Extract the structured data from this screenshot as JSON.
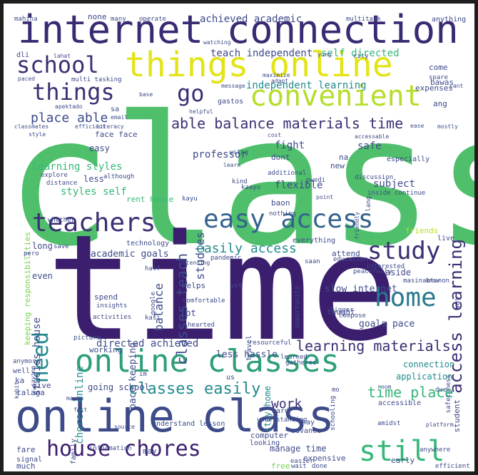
{
  "palette": {
    "purple": "#3b1f6e",
    "indigo": "#3f4a8a",
    "blue": "#33638d",
    "teal": "#238a8d",
    "green": "#35b779",
    "lime": "#7ad151",
    "yellow": "#e3e418",
    "olive": "#b5de2b"
  },
  "words": [
    {
      "text": "class",
      "color": "#4fbf6b"
    },
    {
      "text": "time",
      "color": "#3b1f6e"
    },
    {
      "text": "online class",
      "color": "#3e4b8a"
    },
    {
      "text": "internet connection",
      "color": "#3a2a73"
    },
    {
      "text": "things online",
      "color": "#e3e418"
    },
    {
      "text": "convenient",
      "color": "#b5de2b"
    },
    {
      "text": "online classes",
      "color": "#2e9f7a"
    },
    {
      "text": "easy access",
      "color": "#33638d"
    },
    {
      "text": "house chores",
      "color": "#3b1f6e"
    },
    {
      "text": "still",
      "color": "#35b779"
    },
    {
      "text": "home",
      "color": "#2b7a8e"
    },
    {
      "text": "study",
      "color": "#3b2f73"
    },
    {
      "text": "teachers",
      "color": "#3b2f73"
    },
    {
      "text": "things",
      "color": "#3b2f73"
    },
    {
      "text": "school",
      "color": "#3b2f73"
    },
    {
      "text": "go",
      "color": "#3b2f73"
    },
    {
      "text": "need",
      "color": "#238a8d"
    },
    {
      "text": "classes easily",
      "color": "#238a8d"
    },
    {
      "text": "learning materials",
      "color": "#3b2f73"
    },
    {
      "text": "time place",
      "color": "#35b779"
    },
    {
      "text": "access learning",
      "color": "#3b2f73"
    },
    {
      "text": "able balance materials time",
      "color": "#3b2f73"
    },
    {
      "text": "place able",
      "color": "#3e4b8a"
    },
    {
      "text": "classes teach",
      "color": "#3e4b8a"
    },
    {
      "text": "studies",
      "color": "#3e4b8a"
    },
    {
      "text": "balance",
      "color": "#3e4b8a"
    },
    {
      "text": "easily access",
      "color": "#238a8d"
    },
    {
      "text": "work",
      "color": "#3b2f73"
    },
    {
      "text": "learning styles",
      "color": "#35b779"
    },
    {
      "text": "styles self",
      "color": "#35b779"
    },
    {
      "text": "independent learning",
      "color": "#238a8d"
    },
    {
      "text": "achieved academic",
      "color": "#3e4b8a"
    },
    {
      "text": "teach independent",
      "color": "#3e4b8a"
    },
    {
      "text": "self directed",
      "color": "#35b779"
    },
    {
      "text": "professor",
      "color": "#3e4b8a"
    },
    {
      "text": "flexible",
      "color": "#3e4b8a"
    },
    {
      "text": "subject",
      "color": "#3e4b8a"
    },
    {
      "text": "fight",
      "color": "#3e4b8a"
    },
    {
      "text": "safe",
      "color": "#3e4b8a"
    },
    {
      "text": "chores online",
      "color": "#238a8d"
    },
    {
      "text": "studies house",
      "color": "#3e4b8a"
    },
    {
      "text": "keeping responsibilities",
      "color": "#7ad151"
    },
    {
      "text": "academic goals",
      "color": "#3e4b8a"
    },
    {
      "text": "pace keeping",
      "color": "#3e4b8a"
    },
    {
      "text": "directed achieved",
      "color": "#3e4b8a"
    },
    {
      "text": "less hassle",
      "color": "#3e4b8a"
    },
    {
      "text": "slow internet",
      "color": "#3e4b8a"
    },
    {
      "text": "goals pace",
      "color": "#3e4b8a"
    },
    {
      "text": "rent house",
      "color": "#35b779"
    },
    {
      "text": "going school",
      "color": "#3e4b8a"
    },
    {
      "text": "manage time",
      "color": "#3e4b8a"
    },
    {
      "text": "stay home",
      "color": "#238a8d"
    },
    {
      "text": "application",
      "color": "#238a8d"
    },
    {
      "text": "connection",
      "color": "#238a8d"
    },
    {
      "text": "easy",
      "color": "#3e4b8a"
    },
    {
      "text": "less",
      "color": "#3e4b8a"
    },
    {
      "text": "long",
      "color": "#3e4b8a"
    },
    {
      "text": "even",
      "color": "#3e4b8a"
    },
    {
      "text": "lot",
      "color": "#3e4b8a"
    },
    {
      "text": "helps",
      "color": "#3e4b8a"
    },
    {
      "text": "spend",
      "color": "#3e4b8a"
    },
    {
      "text": "working",
      "color": "#3e4b8a"
    },
    {
      "text": "face face",
      "color": "#3e4b8a"
    },
    {
      "text": "attend",
      "color": "#3e4b8a"
    },
    {
      "text": "aside",
      "color": "#3e4b8a"
    },
    {
      "text": "taught",
      "color": "#3e4b8a"
    },
    {
      "text": "friends",
      "color": "#b5de2b"
    },
    {
      "text": "everything",
      "color": "#3e4b8a"
    },
    {
      "text": "baon",
      "color": "#3e4b8a"
    },
    {
      "text": "new",
      "color": "#3e4b8a"
    },
    {
      "text": "na",
      "color": "#3e4b8a"
    },
    {
      "text": "dont",
      "color": "#3e4b8a"
    },
    {
      "text": "expenses",
      "color": "#3e4b8a"
    },
    {
      "text": "gastos",
      "color": "#3e4b8a"
    },
    {
      "text": "bawas",
      "color": "#3e4b8a"
    },
    {
      "text": "come",
      "color": "#3e4b8a"
    },
    {
      "text": "ang",
      "color": "#3e4b8a"
    },
    {
      "text": "way",
      "color": "#3e4b8a"
    },
    {
      "text": "live",
      "color": "#3e4b8a"
    },
    {
      "text": "give",
      "color": "#3e4b8a"
    },
    {
      "text": "talaga",
      "color": "#3e4b8a"
    },
    {
      "text": "fare",
      "color": "#3e4b8a"
    },
    {
      "text": "signal",
      "color": "#3e4b8a"
    },
    {
      "text": "much",
      "color": "#3e4b8a"
    },
    {
      "text": "may",
      "color": "#3e4b8a"
    },
    {
      "text": "free",
      "color": "#7ad151"
    },
    {
      "text": "computer",
      "color": "#3e4b8a"
    },
    {
      "text": "looking",
      "color": "#3e4b8a"
    },
    {
      "text": "advance",
      "color": "#3e4b8a"
    },
    {
      "text": "expensive",
      "color": "#3e4b8a"
    },
    {
      "text": "early",
      "color": "#3e4b8a"
    },
    {
      "text": "accessible",
      "color": "#3e4b8a"
    },
    {
      "text": "student",
      "color": "#3e4b8a"
    },
    {
      "text": "kay",
      "color": "#3e4b8a"
    },
    {
      "text": "hard",
      "color": "#3e4b8a"
    },
    {
      "text": "understand lesson",
      "color": "#3e4b8a"
    },
    {
      "text": "family",
      "color": "#3e4b8a"
    },
    {
      "text": "information",
      "color": "#3e4b8a"
    },
    {
      "text": "us",
      "color": "#3e4b8a"
    },
    {
      "text": "travel",
      "color": "#3e4b8a"
    },
    {
      "text": "kasi",
      "color": "#3e4b8a"
    },
    {
      "text": "technology",
      "color": "#3e4b8a"
    },
    {
      "text": "comfortable",
      "color": "#3e4b8a"
    },
    {
      "text": "google",
      "color": "#3e4b8a"
    },
    {
      "text": "insights",
      "color": "#3e4b8a"
    },
    {
      "text": "activities",
      "color": "#3e4b8a"
    },
    {
      "text": "resourceful",
      "color": "#3e4b8a"
    },
    {
      "text": "hearted",
      "color": "#3e4b8a"
    },
    {
      "text": "especially",
      "color": "#3e4b8a"
    },
    {
      "text": "discussion",
      "color": "#3e4b8a"
    },
    {
      "text": "inside",
      "color": "#3e4b8a"
    },
    {
      "text": "continue",
      "color": "#3e4b8a"
    },
    {
      "text": "lang",
      "color": "#3e4b8a"
    },
    {
      "text": "kind",
      "color": "#3e4b8a"
    },
    {
      "text": "kaayu",
      "color": "#3e4b8a"
    },
    {
      "text": "kayu",
      "color": "#3e4b8a"
    },
    {
      "text": "using",
      "color": "#3e4b8a"
    },
    {
      "text": "pwedi",
      "color": "#3e4b8a"
    },
    {
      "text": "additional",
      "color": "#3e4b8a"
    },
    {
      "text": "nothing",
      "color": "#3e4b8a"
    },
    {
      "text": "explore",
      "color": "#3e4b8a"
    },
    {
      "text": "distance",
      "color": "#3e4b8a"
    },
    {
      "text": "although",
      "color": "#3e4b8a"
    },
    {
      "text": "learn",
      "color": "#3e4b8a"
    },
    {
      "text": "whether",
      "color": "#3e4b8a"
    },
    {
      "text": "pero",
      "color": "#3e4b8a"
    },
    {
      "text": "save",
      "color": "#3e4b8a"
    },
    {
      "text": "pandemic",
      "color": "#3e4b8a"
    },
    {
      "text": "saan",
      "color": "#3e4b8a"
    },
    {
      "text": "education",
      "color": "#3e4b8a"
    },
    {
      "text": "interested",
      "color": "#3e4b8a"
    },
    {
      "text": "peacefully",
      "color": "#3e4b8a"
    },
    {
      "text": "opportunity",
      "color": "#3e4b8a"
    },
    {
      "text": "masinabtunon",
      "color": "#3e4b8a"
    },
    {
      "text": "know",
      "color": "#3e4b8a"
    },
    {
      "text": "half",
      "color": "#3e4b8a"
    },
    {
      "text": "attending",
      "color": "#3e4b8a"
    },
    {
      "text": "yet",
      "color": "#3e4b8a"
    },
    {
      "text": "bigger",
      "color": "#3e4b8a"
    },
    {
      "text": "compose",
      "color": "#3e4b8a"
    },
    {
      "text": "picture",
      "color": "#3e4b8a"
    },
    {
      "text": "anymore",
      "color": "#3e4b8a"
    },
    {
      "text": "well",
      "color": "#3e4b8a"
    },
    {
      "text": "ka",
      "color": "#3e4b8a"
    },
    {
      "text": "kahit",
      "color": "#3e4b8a"
    },
    {
      "text": "saving",
      "color": "#3e4b8a"
    },
    {
      "text": "im",
      "color": "#3e4b8a"
    },
    {
      "text": "maybe",
      "color": "#3e4b8a"
    },
    {
      "text": "fact",
      "color": "#3e4b8a"
    },
    {
      "text": "source",
      "color": "#3e4b8a"
    },
    {
      "text": "understanding",
      "color": "#3e4b8a"
    },
    {
      "text": "schooling",
      "color": "#3e4b8a"
    },
    {
      "text": "mo",
      "color": "#3e4b8a"
    },
    {
      "text": "gathered",
      "color": "#3e4b8a"
    },
    {
      "text": "learned",
      "color": "#3e4b8a"
    },
    {
      "text": "room",
      "color": "#3e4b8a"
    },
    {
      "text": "due",
      "color": "#3e4b8a"
    },
    {
      "text": "amidst",
      "color": "#3e4b8a"
    },
    {
      "text": "platform",
      "color": "#3e4b8a"
    },
    {
      "text": "anywhere",
      "color": "#3e4b8a"
    },
    {
      "text": "efficient",
      "color": "#3e4b8a"
    },
    {
      "text": "done",
      "color": "#3e4b8a"
    },
    {
      "text": "wait",
      "color": "#3e4b8a"
    },
    {
      "text": "easier",
      "color": "#3e4b8a"
    },
    {
      "text": "safetyness",
      "color": "#3e4b8a"
    },
    {
      "text": "mahina",
      "color": "#3e4b8a"
    },
    {
      "text": "none",
      "color": "#3e4b8a"
    },
    {
      "text": "many",
      "color": "#3e4b8a"
    },
    {
      "text": "operate",
      "color": "#3e4b8a"
    },
    {
      "text": "multitask",
      "color": "#3e4b8a"
    },
    {
      "text": "anything",
      "color": "#3e4b8a"
    },
    {
      "text": "dli",
      "color": "#3e4b8a"
    },
    {
      "text": "lahat",
      "color": "#3e4b8a"
    },
    {
      "text": "watching",
      "color": "#3e4b8a"
    },
    {
      "text": "yung",
      "color": "#3e4b8a"
    },
    {
      "text": "city",
      "color": "#3e4b8a"
    },
    {
      "text": "paced",
      "color": "#3e4b8a"
    },
    {
      "text": "multi tasking",
      "color": "#3e4b8a"
    },
    {
      "text": "maximize",
      "color": "#3e4b8a"
    },
    {
      "text": "adapt",
      "color": "#3e4b8a"
    },
    {
      "text": "spare",
      "color": "#3e4b8a"
    },
    {
      "text": "cant",
      "color": "#3e4b8a"
    },
    {
      "text": "base",
      "color": "#3e4b8a"
    },
    {
      "text": "message",
      "color": "#3e4b8a"
    },
    {
      "text": "apektado",
      "color": "#3e4b8a"
    },
    {
      "text": "sa",
      "color": "#3e4b8a"
    },
    {
      "text": "helpful",
      "color": "#3e4b8a"
    },
    {
      "text": "email",
      "color": "#3e4b8a"
    },
    {
      "text": "literacy",
      "color": "#3e4b8a"
    },
    {
      "text": "classmates",
      "color": "#3e4b8a"
    },
    {
      "text": "efficient",
      "color": "#3e4b8a"
    },
    {
      "text": "style",
      "color": "#3e4b8a"
    },
    {
      "text": "mostly",
      "color": "#3e4b8a"
    },
    {
      "text": "cost",
      "color": "#3e4b8a"
    },
    {
      "text": "accessable",
      "color": "#3e4b8a"
    },
    {
      "text": "point",
      "color": "#3e4b8a"
    },
    {
      "text": "friendly",
      "color": "#3e4b8a"
    },
    {
      "text": "ease",
      "color": "#3e4b8a"
    }
  ]
}
